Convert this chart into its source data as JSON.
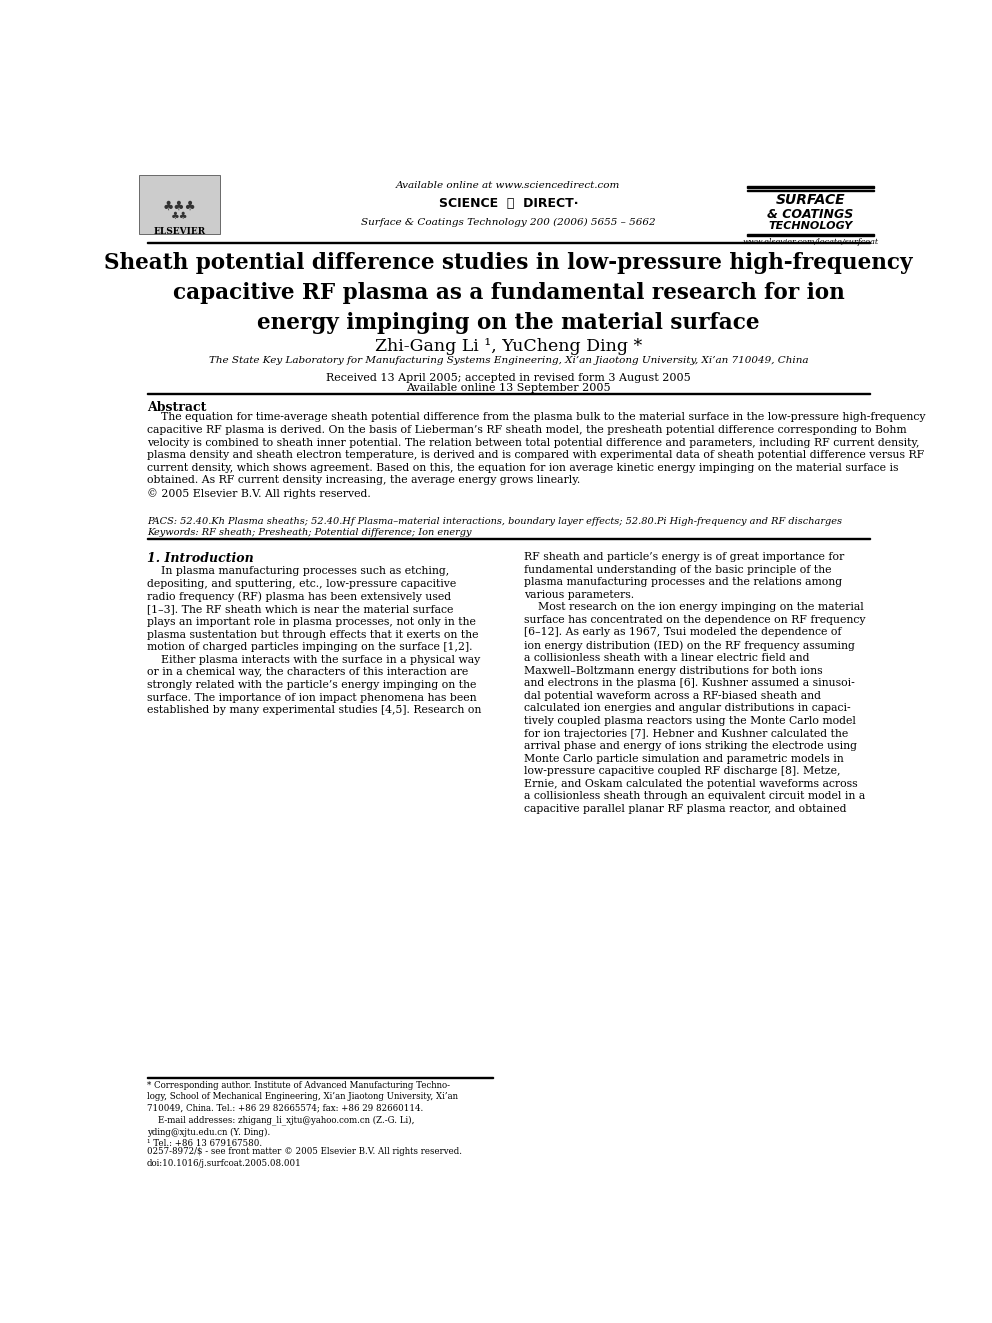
{
  "bg_color": "#ffffff",
  "page_width": 9.92,
  "page_height": 13.23,
  "dpi": 100,
  "header": {
    "available_online": "Available online at www.sciencedirect.com",
    "journal_line": "Surface & Coatings Technology 200 (2006) 5655 – 5662",
    "elsevier_text": "ELSEVIER",
    "sciencedirect_text": "SCIENCE    DIRECT·",
    "journal_logo_text": "SURFACE\n& COATINGS\nTECHNOLOGY",
    "website": "www.elsevier.com/locate/surfcoat"
  },
  "title": "Sheath potential difference studies in low-pressure high-frequency\ncapacitive RF plasma as a fundamental research for ion\nenergy impinging on the material surface",
  "authors": "Zhi-Gang Li ¹, YuCheng Ding *",
  "affiliation": "The State Key Laboratory for Manufacturing Systems Engineering, Xi’an Jiaotong University, Xi’an 710049, China",
  "received": "Received 13 April 2005; accepted in revised form 3 August 2005",
  "available": "Available online 13 September 2005",
  "abstract_title": "Abstract",
  "abstract_text": "    The equation for time-average sheath potential difference from the plasma bulk to the material surface in the low-pressure high-frequency\ncapacitive RF plasma is derived. On the basis of Lieberman’s RF sheath model, the presheath potential difference corresponding to Bohm\nvelocity is combined to sheath inner potential. The relation between total potential difference and parameters, including RF current density,\nplasma density and sheath electron temperature, is derived and is compared with experimental data of sheath potential difference versus RF\ncurrent density, which shows agreement. Based on this, the equation for ion average kinetic energy impinging on the material surface is\nobtained. As RF current density increasing, the average energy grows linearly.\n© 2005 Elsevier B.V. All rights reserved.",
  "pacs_text": "PACS: 52.40.Kh Plasma sheaths; 52.40.Hf Plasma–material interactions, boundary layer effects; 52.80.Pi High-frequency and RF discharges",
  "keywords_text": "Keywords: RF sheath; Presheath; Potential difference; Ion energy",
  "section1_title": "1. Introduction",
  "section1_left": "    In plasma manufacturing processes such as etching,\ndepositing, and sputtering, etc., low-pressure capacitive\nradio frequency (RF) plasma has been extensively used\n[1–3]. The RF sheath which is near the material surface\nplays an important role in plasma processes, not only in the\nplasma sustentation but through effects that it exerts on the\nmotion of charged particles impinging on the surface [1,2].\n    Either plasma interacts with the surface in a physical way\nor in a chemical way, the characters of this interaction are\nstrongly related with the particle’s energy impinging on the\nsurface. The importance of ion impact phenomena has been\nestablished by many experimental studies [4,5]. Research on",
  "section1_right": "RF sheath and particle’s energy is of great importance for\nfundamental understanding of the basic principle of the\nplasma manufacturing processes and the relations among\nvarious parameters.\n    Most research on the ion energy impinging on the material\nsurface has concentrated on the dependence on RF frequency\n[6–12]. As early as 1967, Tsui modeled the dependence of\nion energy distribution (IED) on the RF frequency assuming\na collisionless sheath with a linear electric field and\nMaxwell–Boltzmann energy distributions for both ions\nand electrons in the plasma [6]. Kushner assumed a sinusoi-\ndal potential waveform across a RF-biased sheath and\ncalculated ion energies and angular distributions in capaci-\ntively coupled plasma reactors using the Monte Carlo model\nfor ion trajectories [7]. Hebner and Kushner calculated the\narrival phase and energy of ions striking the electrode using\nMonte Carlo particle simulation and parametric models in\nlow-pressure capacitive coupled RF discharge [8]. Metze,\nErnie, and Oskam calculated the potential waveforms across\na collisionless sheath through an equivalent circuit model in a\ncapacitive parallel planar RF plasma reactor, and obtained",
  "footnote_left": "* Corresponding author. Institute of Advanced Manufacturing Techno-\nlogy, School of Mechanical Engineering, Xi’an Jiaotong University, Xi’an\n710049, China. Tel.: +86 29 82665574; fax: +86 29 82660114.\n    E-mail addresses: zhigang_li_xjtu@yahoo.com.cn (Z.-G. Li),\nyding@xjtu.edu.cn (Y. Ding).\n¹ Tel.: +86 13 679167580.",
  "footnote_bottom": "0257-8972/$ - see front matter © 2005 Elsevier B.V. All rights reserved.\ndoi:10.1016/j.surfcoat.2005.08.001"
}
